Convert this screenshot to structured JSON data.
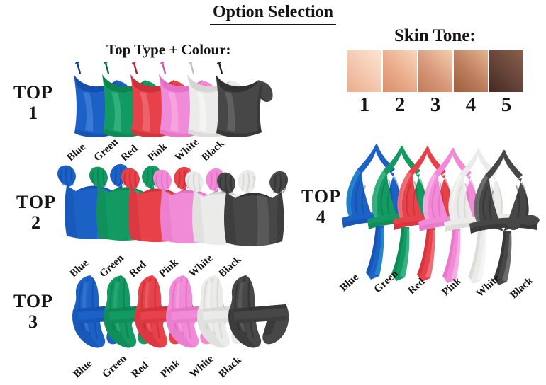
{
  "title": "Option Selection",
  "left_heading": "Top Type + Colour:",
  "skin_tone": {
    "heading": "Skin Tone:",
    "swatches": [
      {
        "label": "1",
        "base": "#f3c7ae",
        "highlight": "#fde5d3",
        "shadow": "#e9ac8e"
      },
      {
        "label": "2",
        "base": "#eaab8a",
        "highlight": "#f8d8bc",
        "shadow": "#d78f6b"
      },
      {
        "label": "3",
        "base": "#d8987a",
        "highlight": "#f3cfae",
        "shadow": "#c17c58"
      },
      {
        "label": "4",
        "base": "#bc7c5e",
        "highlight": "#e5b58e",
        "shadow": "#9c5e3f"
      },
      {
        "label": "5",
        "base": "#654339",
        "highlight": "#8a5f49",
        "shadow": "#44291f"
      }
    ]
  },
  "rows": [
    {
      "name": "TOP",
      "number": "1"
    },
    {
      "name": "TOP",
      "number": "2"
    },
    {
      "name": "TOP",
      "number": "3"
    },
    {
      "name": "TOP",
      "number": "4"
    }
  ],
  "colours": [
    {
      "label": "Blue",
      "base": "#1c61c6",
      "dark": "#0d3e92",
      "light": "#5794e2",
      "sheen": "#2fb0d8"
    },
    {
      "label": "Green",
      "base": "#139a62",
      "dark": "#076c42",
      "light": "#4ec59a",
      "sheen": "#63d2ac"
    },
    {
      "label": "Red",
      "base": "#e7414a",
      "dark": "#b21f2b",
      "light": "#f3868c",
      "sheen": "#f8a9ad"
    },
    {
      "label": "Pink",
      "base": "#f28bd7",
      "dark": "#d457b3",
      "light": "#f9bce9",
      "sheen": "#fcd7f2"
    },
    {
      "label": "White",
      "base": "#ebebe9",
      "dark": "#bfbfbd",
      "light": "#fdfdfc",
      "sheen": "#ffffff"
    },
    {
      "label": "Black",
      "base": "#474747",
      "dark": "#1e1e1e",
      "light": "#7a7a7a",
      "sheen": "#9a9a9a"
    }
  ]
}
